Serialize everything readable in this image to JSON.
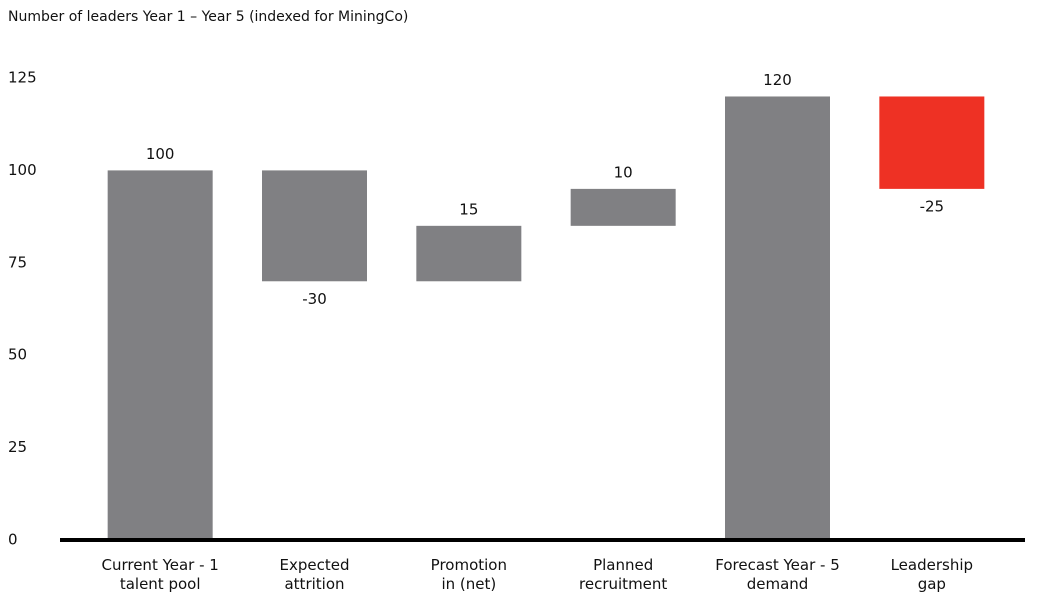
{
  "chart_data": {
    "type": "waterfall",
    "title": "Number of leaders Year 1 – Year 5 (indexed for MiningCo)",
    "categories": [
      [
        "Current Year - 1",
        "talent pool"
      ],
      [
        "Expected",
        "attrition"
      ],
      [
        "Promotion",
        "in (net)"
      ],
      [
        "Planned",
        "recruitment"
      ],
      [
        "Forecast Year - 5",
        "demand"
      ],
      [
        "Leadership",
        "gap"
      ]
    ],
    "values": [
      100,
      -30,
      15,
      10,
      120,
      -25
    ],
    "measure": [
      "absolute",
      "relative",
      "relative",
      "relative",
      "absolute",
      "relative"
    ],
    "colors": [
      "#808083",
      "#808083",
      "#808083",
      "#808083",
      "#808083",
      "#ee3124"
    ],
    "ylim": [
      0,
      125
    ],
    "yticks": [
      0,
      25,
      50,
      75,
      100,
      125
    ],
    "grid": false
  }
}
